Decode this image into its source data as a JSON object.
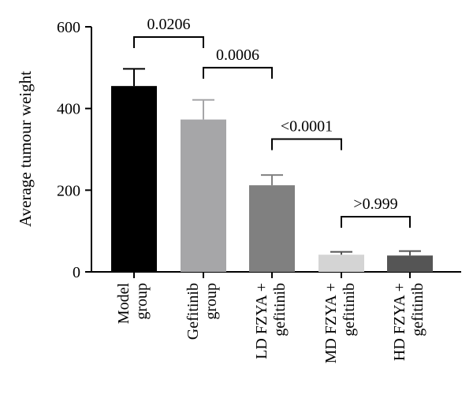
{
  "chart_data": {
    "type": "bar",
    "ylabel": "Average tumour weight",
    "ylim": [
      0,
      600
    ],
    "yticks": [
      "0",
      "200",
      "400",
      "600"
    ],
    "categories": [
      {
        "line1": "Model",
        "line2": "group"
      },
      {
        "line1": "Gefitinib",
        "line2": "group"
      },
      {
        "line1": "LD FZYA +",
        "line2": "gefitinib"
      },
      {
        "line1": "MD FZYA +",
        "line2": "gefitinib"
      },
      {
        "line1": "HD FZYA +",
        "line2": "gefitinib"
      }
    ],
    "values": [
      455,
      373,
      212,
      42,
      40
    ],
    "errors": [
      42,
      48,
      25,
      7,
      11
    ],
    "colors": [
      "#000000",
      "#a6a6a8",
      "#808080",
      "#d4d4d4",
      "#555555"
    ],
    "comparisons": [
      {
        "from": 0,
        "to": 1,
        "label": "0.0206",
        "y": 575
      },
      {
        "from": 1,
        "to": 2,
        "label": "0.0006",
        "y": 500
      },
      {
        "from": 2,
        "to": 3,
        "label": "<0.0001",
        "y": 325
      },
      {
        "from": 3,
        "to": 4,
        "label": ">0.999",
        "y": 135
      }
    ]
  }
}
